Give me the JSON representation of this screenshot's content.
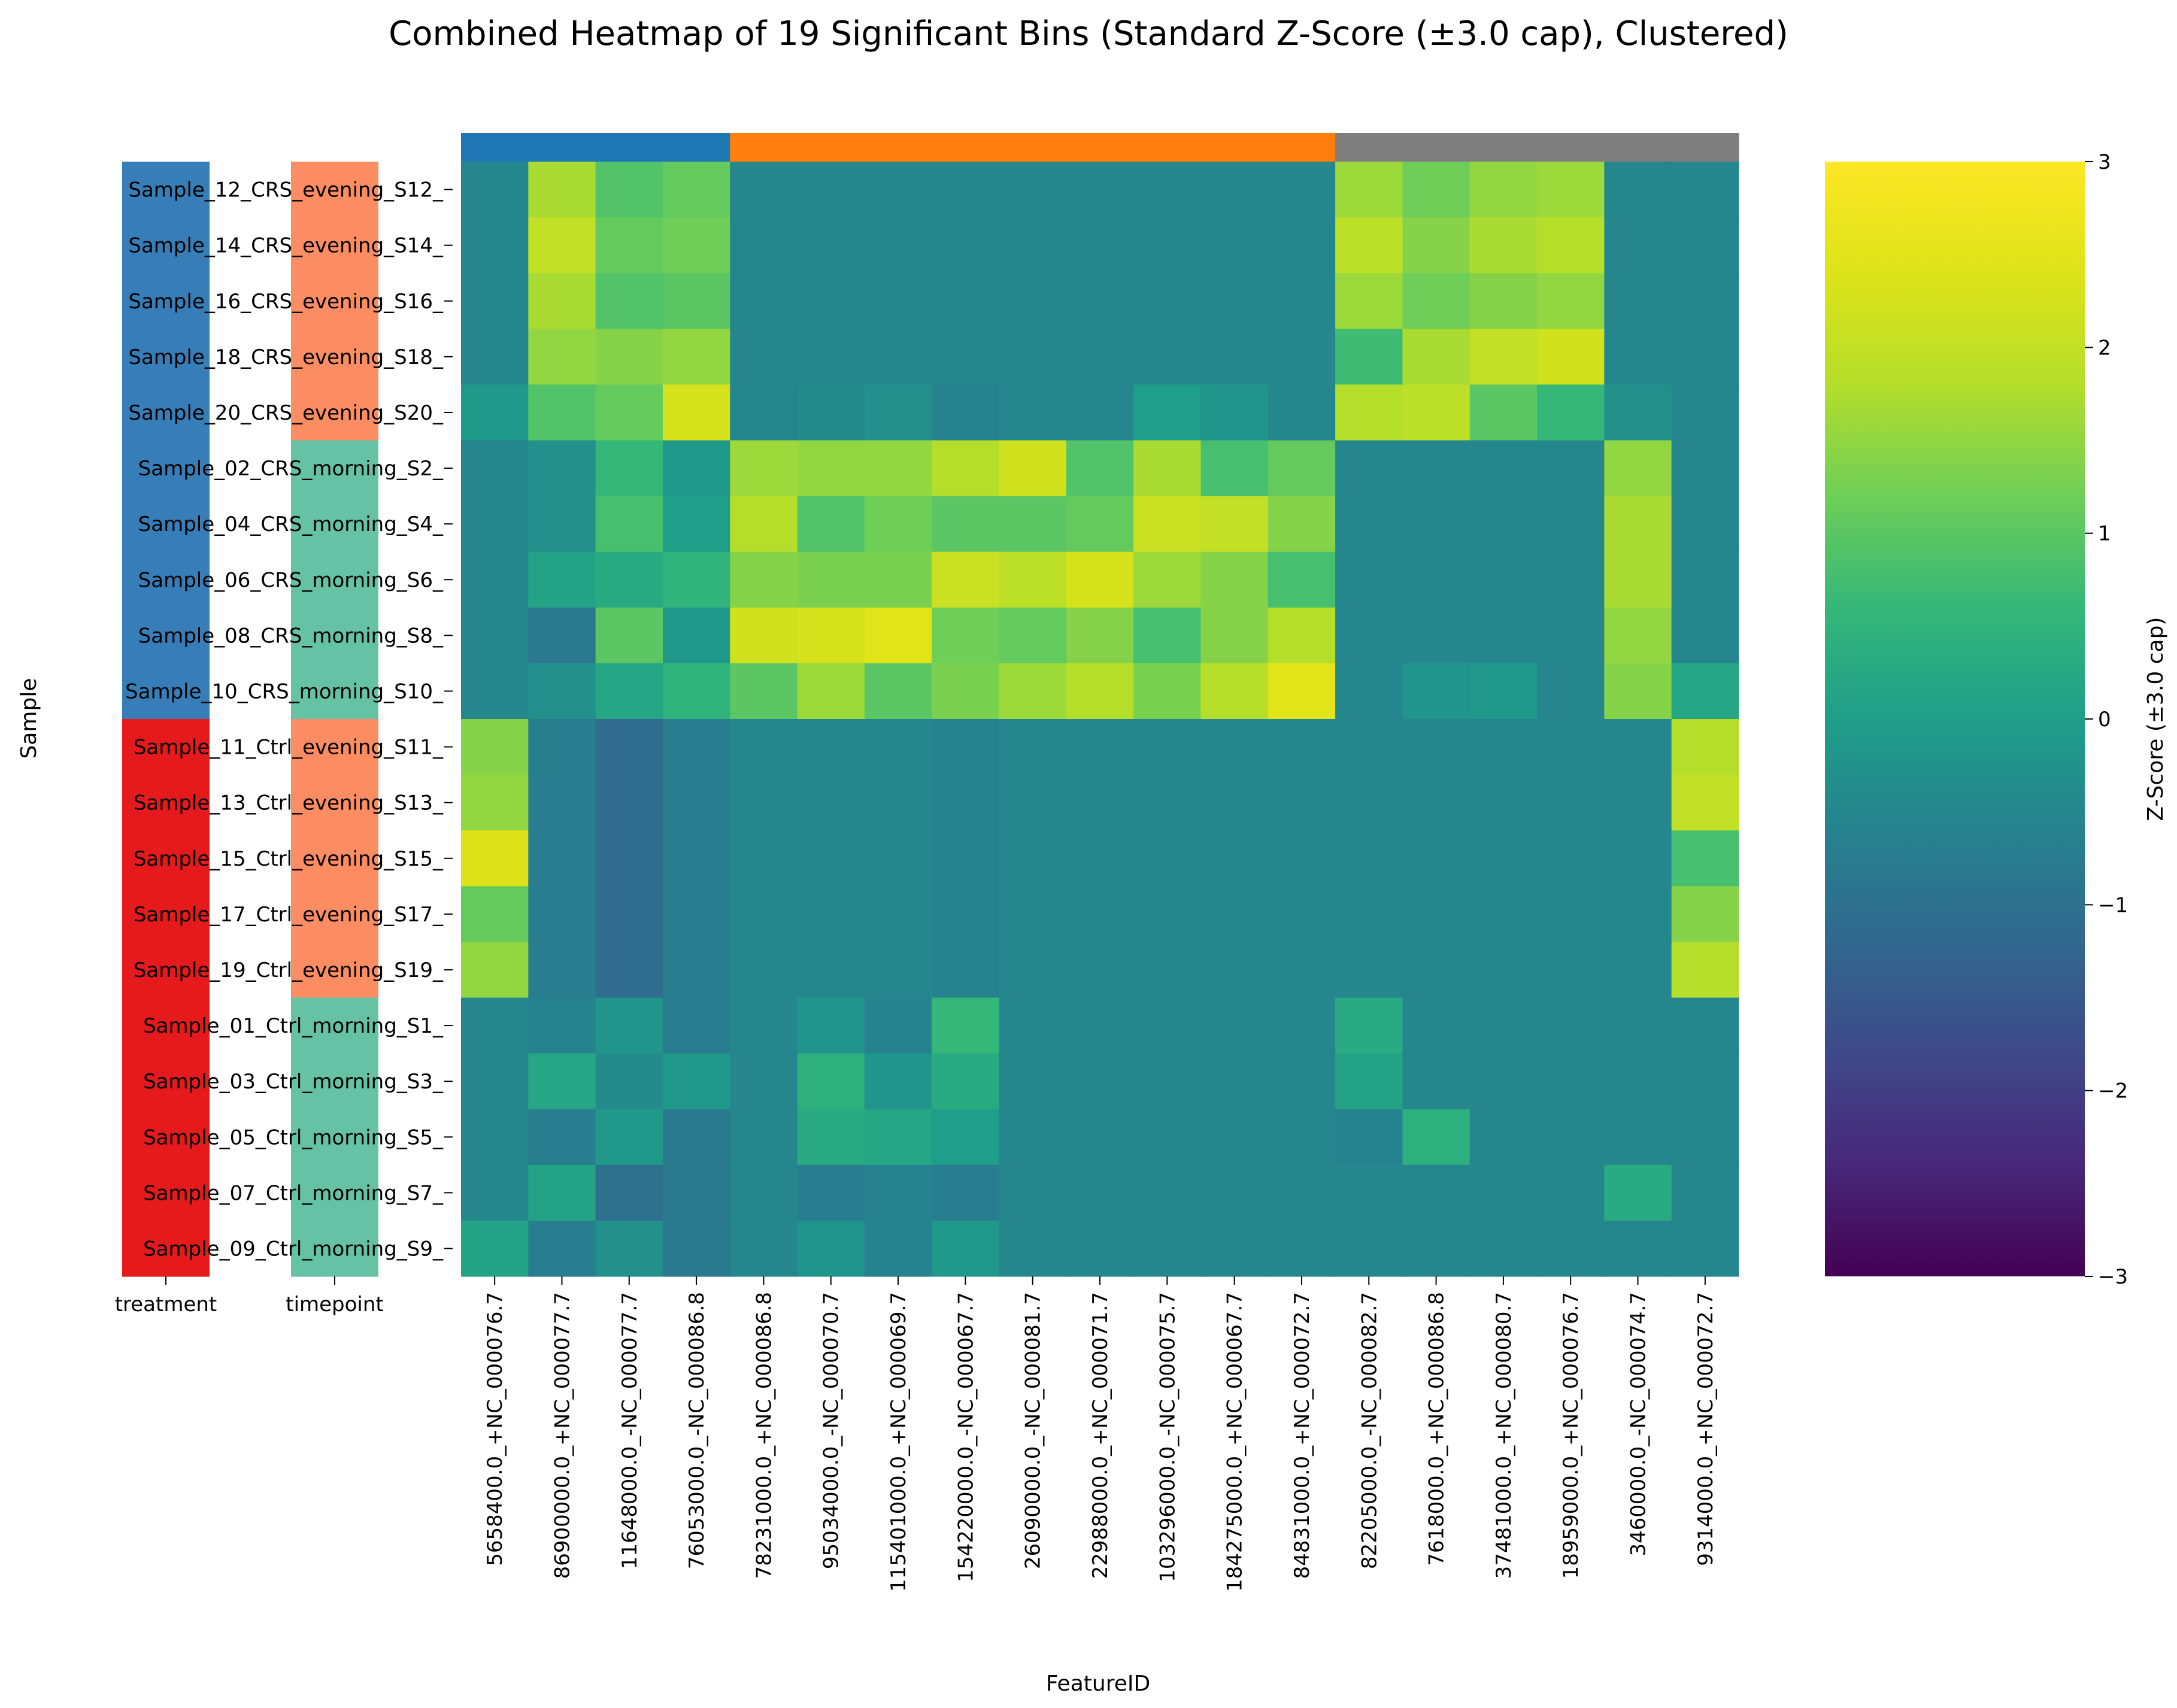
{
  "chart_data": {
    "type": "heatmap",
    "title": "Combined Heatmap of 19 Significant Bins (Standard Z-Score (±3.0 cap), Clustered)",
    "xlabel": "FeatureID",
    "ylabel": "Sample",
    "colorbar_label": "Z-Score (±3.0 cap)",
    "colormap": "viridis",
    "vmin": -3,
    "vmax": 3,
    "colorbar_ticks": [
      "−3",
      "−2",
      "−1",
      "0",
      "1",
      "2",
      "3"
    ],
    "annotation_labels": [
      "treatment",
      "timepoint"
    ],
    "columns": [
      "5658400.0_+NC_000076.7",
      "86900000.0_+NC_000077.7",
      "11648000.0_-NC_000077.7",
      "76053000.0_-NC_000086.8",
      "78231000.0_+NC_000086.8",
      "95034000.0_-NC_000070.7",
      "115401000.0_+NC_000069.7",
      "154220000.0_-NC_000067.7",
      "26090000.0_-NC_000081.7",
      "22988000.0_+NC_000071.7",
      "103296000.0_-NC_000075.7",
      "184275000.0_+NC_000067.7",
      "84831000.0_+NC_000072.7",
      "82205000.0_-NC_000082.7",
      "7618000.0_+NC_000086.8",
      "37481000.0_+NC_000080.7",
      "18959000.0_+NC_000076.7",
      "3460000.0_-NC_000074.7",
      "9314000.0_+NC_000072.7"
    ],
    "rows": [
      "Sample_12_CRS_evening_S12_",
      "Sample_14_CRS_evening_S14_",
      "Sample_16_CRS_evening_S16_",
      "Sample_18_CRS_evening_S18_",
      "Sample_20_CRS_evening_S20_",
      "Sample_02_CRS_morning_S2_",
      "Sample_04_CRS_morning_S4_",
      "Sample_06_CRS_morning_S6_",
      "Sample_08_CRS_morning_S8_",
      "Sample_10_CRS_morning_S10_",
      "Sample_11_Ctrl_evening_S11_",
      "Sample_13_Ctrl_evening_S13_",
      "Sample_15_Ctrl_evening_S15_",
      "Sample_17_Ctrl_evening_S17_",
      "Sample_19_Ctrl_evening_S19_",
      "Sample_01_Ctrl_morning_S1_",
      "Sample_03_Ctrl_morning_S3_",
      "Sample_05_Ctrl_morning_S5_",
      "Sample_07_Ctrl_morning_S7_",
      "Sample_09_Ctrl_morning_S9_"
    ],
    "column_groups": [
      "#1f77b4",
      "#1f77b4",
      "#1f77b4",
      "#1f77b4",
      "#ff7f0e",
      "#ff7f0e",
      "#ff7f0e",
      "#ff7f0e",
      "#ff7f0e",
      "#ff7f0e",
      "#ff7f0e",
      "#ff7f0e",
      "#ff7f0e",
      "#7f7f7f",
      "#7f7f7f",
      "#7f7f7f",
      "#7f7f7f",
      "#7f7f7f",
      "#7f7f7f"
    ],
    "row_treatment_colors": [
      "#377eb8",
      "#377eb8",
      "#377eb8",
      "#377eb8",
      "#377eb8",
      "#377eb8",
      "#377eb8",
      "#377eb8",
      "#377eb8",
      "#377eb8",
      "#e41a1c",
      "#e41a1c",
      "#e41a1c",
      "#e41a1c",
      "#e41a1c",
      "#e41a1c",
      "#e41a1c",
      "#e41a1c",
      "#e41a1c",
      "#e41a1c"
    ],
    "row_timepoint_colors": [
      "#fc8d62",
      "#fc8d62",
      "#fc8d62",
      "#fc8d62",
      "#fc8d62",
      "#66c2a5",
      "#66c2a5",
      "#66c2a5",
      "#66c2a5",
      "#66c2a5",
      "#fc8d62",
      "#fc8d62",
      "#fc8d62",
      "#fc8d62",
      "#fc8d62",
      "#66c2a5",
      "#66c2a5",
      "#66c2a5",
      "#66c2a5",
      "#66c2a5"
    ],
    "values": [
      [
        -0.5,
        1.7,
        0.9,
        1.1,
        -0.5,
        -0.5,
        -0.5,
        -0.5,
        -0.5,
        -0.5,
        -0.5,
        -0.5,
        -0.5,
        1.6,
        1.2,
        1.5,
        1.6,
        -0.5,
        -0.5
      ],
      [
        -0.5,
        2.0,
        1.1,
        1.2,
        -0.5,
        -0.5,
        -0.5,
        -0.5,
        -0.5,
        -0.5,
        -0.5,
        -0.5,
        -0.5,
        1.9,
        1.4,
        1.7,
        1.8,
        -0.5,
        -0.5
      ],
      [
        -0.5,
        1.7,
        0.9,
        1.0,
        -0.5,
        -0.5,
        -0.5,
        -0.5,
        -0.5,
        -0.5,
        -0.5,
        -0.5,
        -0.5,
        1.6,
        1.2,
        1.4,
        1.5,
        -0.5,
        -0.5
      ],
      [
        -0.5,
        1.5,
        1.4,
        1.5,
        -0.5,
        -0.5,
        -0.5,
        -0.5,
        -0.5,
        -0.5,
        -0.5,
        -0.5,
        -0.5,
        0.7,
        1.7,
        2.0,
        2.2,
        -0.5,
        -0.5
      ],
      [
        -0.1,
        0.9,
        1.1,
        2.3,
        -0.5,
        -0.4,
        -0.3,
        -0.6,
        -0.5,
        -0.5,
        0.0,
        -0.2,
        -0.5,
        1.8,
        1.9,
        1.0,
        0.6,
        -0.3,
        -0.5
      ],
      [
        -0.5,
        -0.3,
        0.6,
        -0.1,
        1.6,
        1.5,
        1.5,
        1.8,
        2.2,
        0.9,
        1.7,
        0.8,
        1.1,
        -0.5,
        -0.5,
        -0.5,
        -0.5,
        1.5,
        -0.5
      ],
      [
        -0.5,
        -0.3,
        0.8,
        0.0,
        1.8,
        0.9,
        1.2,
        1.0,
        1.0,
        1.1,
        2.1,
        2.0,
        1.4,
        -0.5,
        -0.5,
        -0.5,
        -0.5,
        1.7,
        -0.5
      ],
      [
        -0.5,
        0.1,
        0.3,
        0.5,
        1.4,
        1.3,
        1.3,
        2.1,
        1.9,
        2.3,
        1.6,
        1.4,
        0.8,
        -0.5,
        -0.5,
        -0.5,
        -0.5,
        1.7,
        -0.5
      ],
      [
        -0.5,
        -0.8,
        1.0,
        -0.1,
        2.2,
        2.3,
        2.5,
        1.2,
        1.1,
        1.4,
        0.8,
        1.4,
        1.8,
        -0.5,
        -0.5,
        -0.5,
        -0.5,
        1.5,
        -0.5
      ],
      [
        -0.5,
        -0.3,
        0.2,
        0.5,
        1.0,
        1.6,
        1.0,
        1.3,
        1.6,
        1.8,
        1.3,
        1.8,
        2.5,
        -0.5,
        -0.2,
        -0.1,
        -0.5,
        1.4,
        0.2
      ],
      [
        1.4,
        -0.7,
        -1.1,
        -0.7,
        -0.5,
        -0.5,
        -0.5,
        -0.6,
        -0.5,
        -0.5,
        -0.5,
        -0.5,
        -0.5,
        -0.5,
        -0.5,
        -0.5,
        -0.5,
        -0.5,
        1.8
      ],
      [
        1.5,
        -0.7,
        -1.1,
        -0.7,
        -0.5,
        -0.5,
        -0.5,
        -0.6,
        -0.5,
        -0.5,
        -0.5,
        -0.5,
        -0.5,
        -0.5,
        -0.5,
        -0.5,
        -0.5,
        -0.5,
        2.0
      ],
      [
        2.4,
        -0.7,
        -1.1,
        -0.7,
        -0.5,
        -0.5,
        -0.5,
        -0.6,
        -0.5,
        -0.5,
        -0.5,
        -0.5,
        -0.5,
        -0.5,
        -0.5,
        -0.5,
        -0.5,
        -0.5,
        0.8
      ],
      [
        1.1,
        -0.7,
        -1.1,
        -0.7,
        -0.5,
        -0.5,
        -0.5,
        -0.6,
        -0.5,
        -0.5,
        -0.5,
        -0.5,
        -0.5,
        -0.5,
        -0.5,
        -0.5,
        -0.5,
        -0.5,
        1.4
      ],
      [
        1.5,
        -0.7,
        -1.1,
        -0.7,
        -0.5,
        -0.5,
        -0.5,
        -0.6,
        -0.5,
        -0.5,
        -0.5,
        -0.5,
        -0.5,
        -0.5,
        -0.5,
        -0.5,
        -0.5,
        -0.5,
        1.8
      ],
      [
        -0.5,
        -0.6,
        -0.2,
        -0.7,
        -0.5,
        -0.2,
        -0.6,
        0.6,
        -0.5,
        -0.5,
        -0.5,
        -0.5,
        -0.5,
        0.3,
        -0.5,
        -0.5,
        -0.5,
        -0.5,
        -0.5
      ],
      [
        -0.5,
        0.2,
        -0.4,
        -0.1,
        -0.5,
        0.4,
        -0.2,
        0.3,
        -0.5,
        -0.5,
        -0.5,
        -0.5,
        -0.5,
        0.1,
        -0.5,
        -0.5,
        -0.5,
        -0.5,
        -0.5
      ],
      [
        -0.5,
        -0.7,
        -0.1,
        -0.8,
        -0.5,
        0.3,
        0.2,
        0.0,
        -0.5,
        -0.5,
        -0.5,
        -0.5,
        -0.5,
        -0.6,
        0.4,
        -0.5,
        -0.5,
        -0.5,
        -0.5
      ],
      [
        -0.5,
        0.1,
        -1.0,
        -0.8,
        -0.5,
        -0.7,
        -0.6,
        -0.7,
        -0.5,
        -0.5,
        -0.5,
        -0.5,
        -0.5,
        -0.5,
        -0.5,
        -0.5,
        -0.5,
        0.3,
        -0.5
      ],
      [
        0.1,
        -0.7,
        -0.3,
        -0.8,
        -0.5,
        -0.2,
        -0.6,
        -0.1,
        -0.5,
        -0.5,
        -0.5,
        -0.5,
        -0.5,
        -0.5,
        -0.5,
        -0.5,
        -0.5,
        -0.5,
        -0.5
      ]
    ]
  }
}
